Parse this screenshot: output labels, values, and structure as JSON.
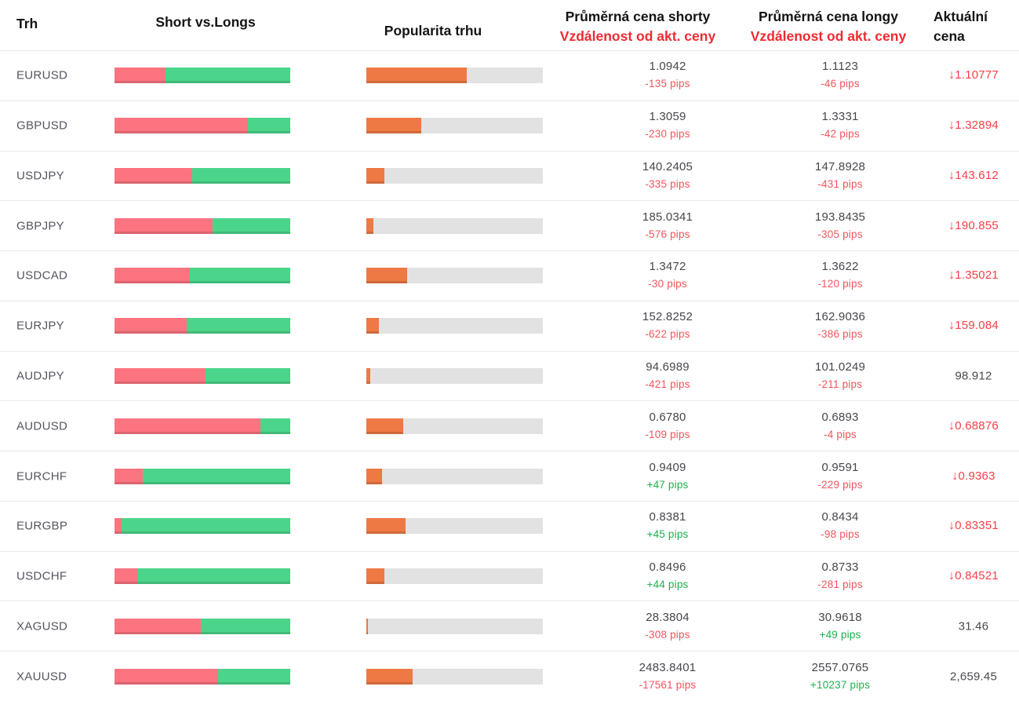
{
  "header": {
    "market": "Trh",
    "short_vs_longs": "Short vs.Longs",
    "popularity": "Popularita trhu",
    "avg_short_line1": "Průměrná cena shorty",
    "avg_short_line2": "Vzdálenost od akt. ceny",
    "avg_long_line1": "Průměrná cena longy",
    "avg_long_line2": "Vzdálenost od akt. ceny",
    "current_line1": "Aktuální",
    "current_line2": "cena"
  },
  "colors": {
    "bar_short": "#fb7480",
    "bar_long": "#4bd58a",
    "bar_popularity": "#ee7944",
    "bar_track": "#e2e2e2",
    "header_red": "#ee2b33",
    "pips_negative": "#f4545c",
    "pips_positive": "#1db04e",
    "price_down": "#fc3e46",
    "price_neutral": "#4b4b50"
  },
  "icons": {
    "down_arrow": "↓"
  },
  "rows": [
    {
      "market": "EURUSD",
      "short_pct": 29,
      "popularity_pct": 57,
      "avg_short_price": "1.0942",
      "avg_short_dist": "-135 pips",
      "avg_long_price": "1.1123",
      "avg_long_dist": "-46 pips",
      "current_price": "1.10777",
      "trend": "down"
    },
    {
      "market": "GBPUSD",
      "short_pct": 76,
      "popularity_pct": 31,
      "avg_short_price": "1.3059",
      "avg_short_dist": "-230 pips",
      "avg_long_price": "1.3331",
      "avg_long_dist": "-42 pips",
      "current_price": "1.32894",
      "trend": "down"
    },
    {
      "market": "USDJPY",
      "short_pct": 44,
      "popularity_pct": 10,
      "avg_short_price": "140.2405",
      "avg_short_dist": "-335 pips",
      "avg_long_price": "147.8928",
      "avg_long_dist": "-431 pips",
      "current_price": "143.612",
      "trend": "down"
    },
    {
      "market": "GBPJPY",
      "short_pct": 56,
      "popularity_pct": 4,
      "avg_short_price": "185.0341",
      "avg_short_dist": "-576 pips",
      "avg_long_price": "193.8435",
      "avg_long_dist": "-305 pips",
      "current_price": "190.855",
      "trend": "down"
    },
    {
      "market": "USDCAD",
      "short_pct": 43,
      "popularity_pct": 23,
      "avg_short_price": "1.3472",
      "avg_short_dist": "-30 pips",
      "avg_long_price": "1.3622",
      "avg_long_dist": "-120 pips",
      "current_price": "1.35021",
      "trend": "down"
    },
    {
      "market": "EURJPY",
      "short_pct": 41,
      "popularity_pct": 7,
      "avg_short_price": "152.8252",
      "avg_short_dist": "-622 pips",
      "avg_long_price": "162.9036",
      "avg_long_dist": "-386 pips",
      "current_price": "159.084",
      "trend": "down"
    },
    {
      "market": "AUDJPY",
      "short_pct": 52,
      "popularity_pct": 2,
      "avg_short_price": "94.6989",
      "avg_short_dist": "-421 pips",
      "avg_long_price": "101.0249",
      "avg_long_dist": "-211 pips",
      "current_price": "98.912",
      "trend": "none"
    },
    {
      "market": "AUDUSD",
      "short_pct": 83,
      "popularity_pct": 21,
      "avg_short_price": "0.6780",
      "avg_short_dist": "-109 pips",
      "avg_long_price": "0.6893",
      "avg_long_dist": "-4 pips",
      "current_price": "0.68876",
      "trend": "down"
    },
    {
      "market": "EURCHF",
      "short_pct": 16,
      "popularity_pct": 9,
      "avg_short_price": "0.9409",
      "avg_short_dist": "+47 pips",
      "avg_long_price": "0.9591",
      "avg_long_dist": "-229 pips",
      "current_price": "0.9363",
      "trend": "down"
    },
    {
      "market": "EURGBP",
      "short_pct": 4,
      "popularity_pct": 22,
      "avg_short_price": "0.8381",
      "avg_short_dist": "+45 pips",
      "avg_long_price": "0.8434",
      "avg_long_dist": "-98 pips",
      "current_price": "0.83351",
      "trend": "down"
    },
    {
      "market": "USDCHF",
      "short_pct": 13,
      "popularity_pct": 10,
      "avg_short_price": "0.8496",
      "avg_short_dist": "+44 pips",
      "avg_long_price": "0.8733",
      "avg_long_dist": "-281 pips",
      "current_price": "0.84521",
      "trend": "down"
    },
    {
      "market": "XAGUSD",
      "short_pct": 49,
      "popularity_pct": 1,
      "avg_short_price": "28.3804",
      "avg_short_dist": "-308 pips",
      "avg_long_price": "30.9618",
      "avg_long_dist": "+49 pips",
      "current_price": "31.46",
      "trend": "none"
    },
    {
      "market": "XAUUSD",
      "short_pct": 59,
      "popularity_pct": 26,
      "avg_short_price": "2483.8401",
      "avg_short_dist": "-17561 pips",
      "avg_long_price": "2557.0765",
      "avg_long_dist": "+10237 pips",
      "current_price": "2,659.45",
      "trend": "none"
    }
  ]
}
